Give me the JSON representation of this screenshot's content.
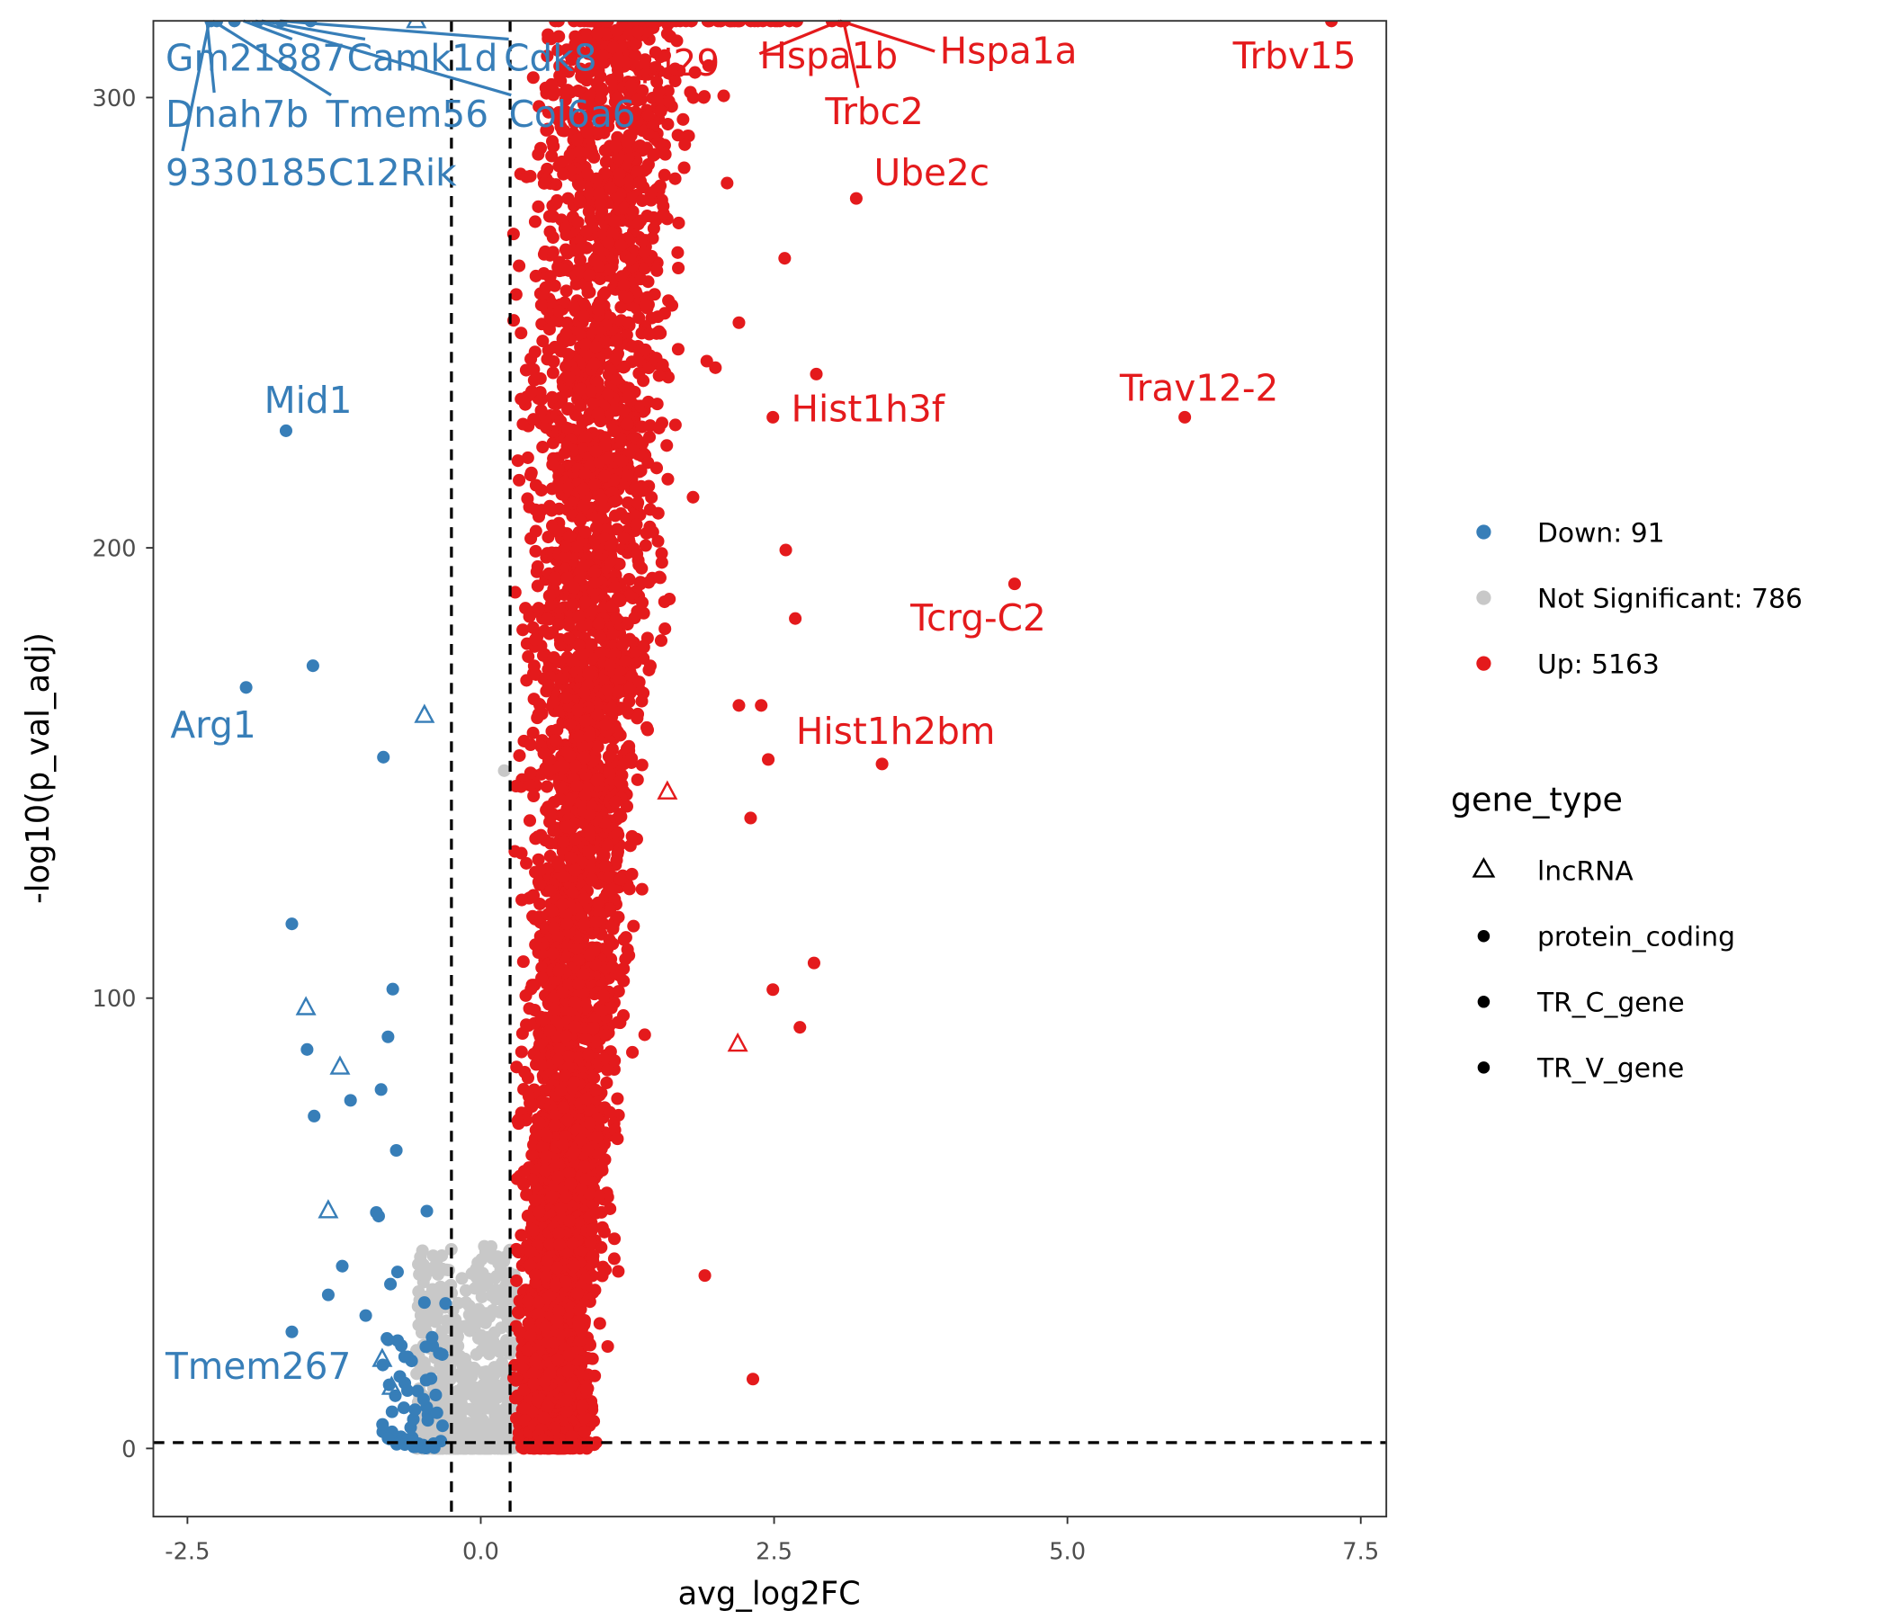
{
  "chart_data": {
    "type": "scatter",
    "title": "",
    "xlabel": "avg_log2FC",
    "ylabel": "-log10(p_val_adj)",
    "xlim": [
      -2.85,
      7.65
    ],
    "ylim": [
      -15,
      317
    ],
    "x_ticks": [
      -2.5,
      0.0,
      2.5,
      5.0,
      7.5
    ],
    "x_tick_labels": [
      "-2.5",
      "0.0",
      "2.5",
      "5.0",
      "7.5"
    ],
    "y_ticks": [
      0,
      100,
      200,
      300
    ],
    "y_tick_labels": [
      "0",
      "100",
      "200",
      "300"
    ],
    "thresholds": {
      "log2fc": [
        -0.25,
        0.25
      ],
      "neg_log10_p": 1.3
    },
    "grid": false,
    "colors": {
      "Down": "#377EB8",
      "Not Significant": "#C8C8C8",
      "Up": "#E41A1C"
    },
    "legend": {
      "placement": "right",
      "color_entries": [
        {
          "key": "Down",
          "label": "Down: 91"
        },
        {
          "key": "Not Significant",
          "label": "Not Significant: 786"
        },
        {
          "key": "Up",
          "label": "Up: 5163"
        }
      ],
      "shape_title": "gene_type",
      "shape_entries": [
        {
          "label": "lncRNA",
          "shape": "triangle"
        },
        {
          "label": "protein_coding",
          "shape": "dot"
        },
        {
          "label": "TR_C_gene",
          "shape": "dot"
        },
        {
          "label": "TR_V_gene",
          "shape": "dot"
        }
      ]
    },
    "counts": {
      "Down": 91,
      "Not Significant": 786,
      "Up": 5163
    },
    "labeled_genes": [
      {
        "gene": "Gm21887",
        "group": "Down",
        "x": -2.25,
        "y": 317
      },
      {
        "gene": "Camk1d",
        "group": "Down",
        "x": -1.9,
        "y": 317
      },
      {
        "gene": "Cdk8",
        "group": "Down",
        "x": -1.45,
        "y": 317
      },
      {
        "gene": "Dnah7b",
        "group": "Down",
        "x": -2.3,
        "y": 317
      },
      {
        "gene": "Tmem56",
        "group": "Down",
        "x": -2.1,
        "y": 317
      },
      {
        "gene": "Col6a6",
        "group": "Down",
        "x": -1.7,
        "y": 317
      },
      {
        "gene": "9330185C12Rik",
        "group": "Down",
        "x": -2.28,
        "y": 317
      },
      {
        "gene": "Mid1",
        "group": "Down",
        "x": -1.66,
        "y": 226
      },
      {
        "gene": "Arg1",
        "group": "Down",
        "x": -2.0,
        "y": 169
      },
      {
        "gene": "Tmem267",
        "group": "Down",
        "x": -0.84,
        "y": 19.7,
        "shape": "triangle"
      },
      {
        "gene": "Rpl29",
        "group": "Up",
        "x": 2.4,
        "y": 317
      },
      {
        "gene": "Hspa1b",
        "group": "Up",
        "x": 3.06,
        "y": 317
      },
      {
        "gene": "Hspa1a",
        "group": "Up",
        "x": 3.06,
        "y": 317
      },
      {
        "gene": "Trbc2",
        "group": "Up",
        "x": 3.08,
        "y": 317
      },
      {
        "gene": "Trbv15",
        "group": "Up",
        "x": 7.25,
        "y": 317
      },
      {
        "gene": "Ube2c",
        "group": "Up",
        "x": 3.2,
        "y": 277.6
      },
      {
        "gene": "Trav12-2",
        "group": "Up",
        "x": 6.0,
        "y": 229
      },
      {
        "gene": "Hist1h3f",
        "group": "Up",
        "x": 2.49,
        "y": 229
      },
      {
        "gene": "Tcrg-C2",
        "group": "Up",
        "x": 4.55,
        "y": 192
      },
      {
        "gene": "Hist1h2bm",
        "group": "Up",
        "x": 3.42,
        "y": 152
      }
    ],
    "points_down": [
      [
        -1.43,
        173.8
      ],
      [
        -0.83,
        153.5
      ],
      [
        -1.61,
        116.5
      ],
      [
        -0.75,
        102
      ],
      [
        -0.79,
        91.4
      ],
      [
        -1.48,
        88.6
      ],
      [
        -0.85,
        79.7
      ],
      [
        -1.11,
        77.3
      ],
      [
        -1.42,
        73.8
      ],
      [
        -0.72,
        66.2
      ],
      [
        -0.89,
        52.4
      ],
      [
        -0.87,
        51.6
      ],
      [
        -0.46,
        52.7
      ],
      [
        -1.18,
        40.5
      ],
      [
        -0.71,
        39.2
      ],
      [
        -0.77,
        36.5
      ],
      [
        -1.3,
        34.1
      ],
      [
        -0.98,
        29.5
      ],
      [
        -1.61,
        25.9
      ],
      [
        -0.48,
        32.4
      ],
      [
        -0.3,
        32.2
      ]
    ],
    "triangles_down": [
      [
        -0.48,
        162.7
      ],
      [
        -1.49,
        97.8
      ],
      [
        -1.2,
        84.6
      ],
      [
        -1.3,
        52.7
      ],
      [
        -0.76,
        13.5
      ]
    ],
    "points_up_outliers": [
      [
        2.59,
        264.3
      ],
      [
        2.86,
        238.6
      ],
      [
        2.6,
        199.5
      ],
      [
        2.68,
        184.3
      ],
      [
        2.39,
        165
      ],
      [
        2.84,
        107.8
      ],
      [
        2.49,
        101.9
      ],
      [
        2.72,
        93.5
      ],
      [
        2.32,
        15.4
      ],
      [
        1.91,
        38.4
      ],
      [
        0.28,
        250.5
      ],
      [
        1.03,
        302
      ],
      [
        1.9,
        300
      ],
      [
        2.1,
        281
      ],
      [
        2.2,
        250
      ],
      [
        2.0,
        240
      ],
      [
        2.45,
        153
      ],
      [
        2.2,
        165
      ],
      [
        2.3,
        140
      ]
    ],
    "triangles_up": [
      [
        2.19,
        89.7
      ],
      [
        1.59,
        145.7
      ]
    ],
    "points_ns_outliers": [
      [
        0.2,
        150.5
      ]
    ]
  }
}
